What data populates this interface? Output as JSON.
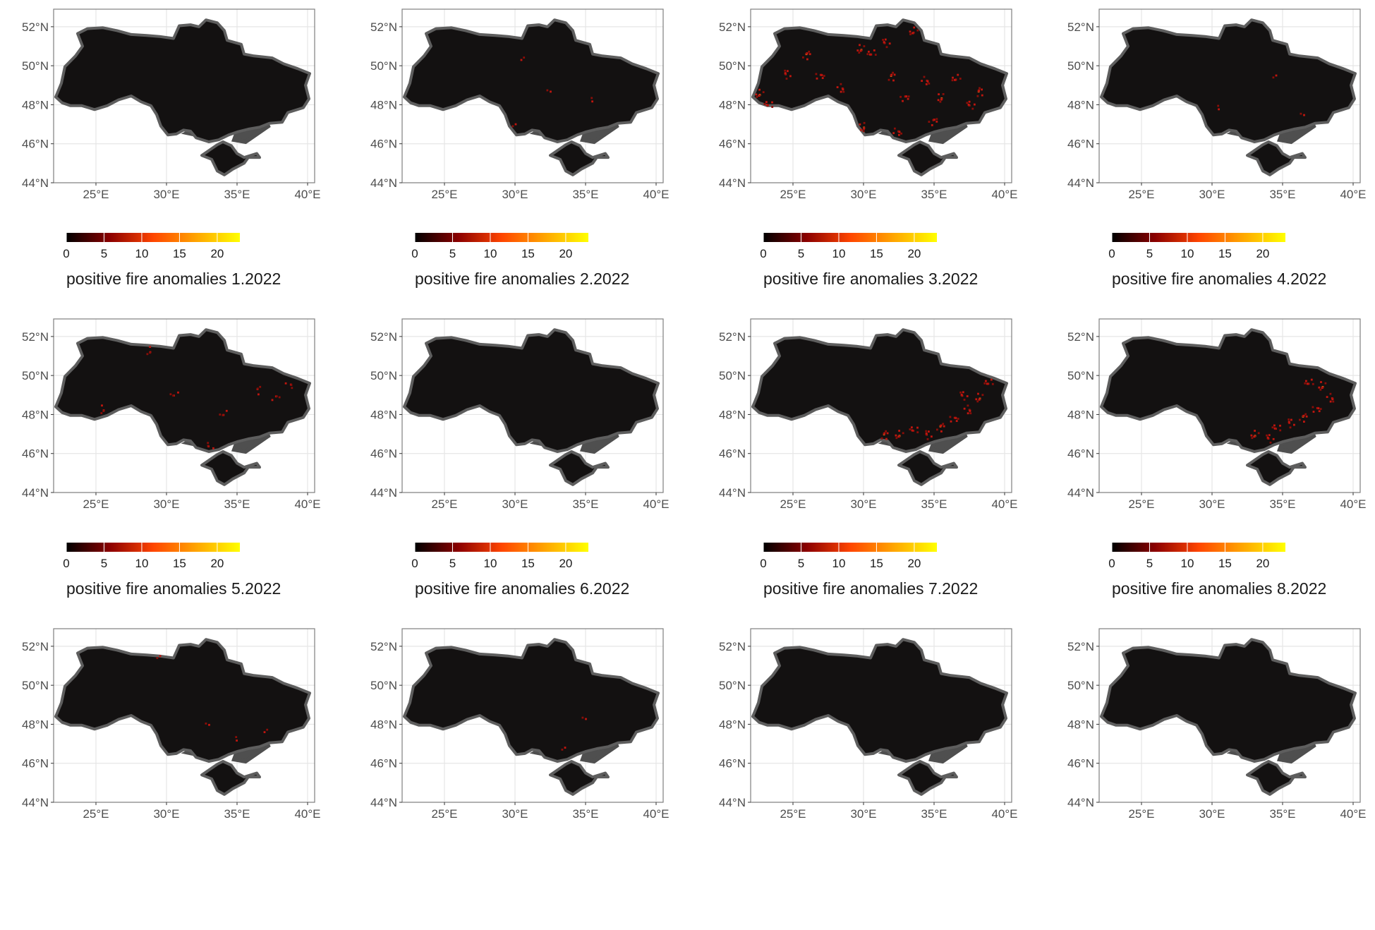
{
  "chart_data": {
    "type": "heatmap",
    "description_of_axes": "map panels with longitude (x) and latitude (y) graticules",
    "x_ticks": [
      "25°E",
      "30°E",
      "35°E",
      "40°E"
    ],
    "x_tick_values": [
      25,
      30,
      35,
      40
    ],
    "y_ticks": [
      "52°N",
      "50°N",
      "48°N",
      "46°N",
      "44°N"
    ],
    "y_tick_values": [
      52,
      50,
      48,
      46,
      44
    ],
    "xlim": [
      22,
      40.5
    ],
    "ylim": [
      44,
      52.9
    ],
    "grid": true,
    "legend": {
      "ticks": [
        "0",
        "5",
        "10",
        "15",
        "20"
      ],
      "tick_values": [
        0,
        5,
        10,
        15,
        20
      ],
      "range": [
        0,
        23
      ],
      "colors": [
        "#000000",
        "#8b0000",
        "#ff4500",
        "#ffa500",
        "#ffff00"
      ]
    },
    "panels": [
      {
        "title": "positive fire anomalies 1.2022",
        "month": 1,
        "year": 2022,
        "activity": "very low",
        "hotspots": []
      },
      {
        "title": "positive fire anomalies 2.2022",
        "month": 2,
        "year": 2022,
        "activity": "low",
        "hotspots": [
          {
            "lon": 30.0,
            "lat": 47.0
          },
          {
            "lon": 32.5,
            "lat": 48.7
          },
          {
            "lon": 35.5,
            "lat": 48.2
          },
          {
            "lon": 30.5,
            "lat": 50.3
          }
        ]
      },
      {
        "title": "positive fire anomalies 3.2022",
        "month": 3,
        "year": 2022,
        "activity": "high",
        "hotspots": [
          {
            "lon": 22.6,
            "lat": 48.5
          },
          {
            "lon": 23.2,
            "lat": 48.0
          },
          {
            "lon": 24.5,
            "lat": 49.6
          },
          {
            "lon": 26.0,
            "lat": 50.6
          },
          {
            "lon": 27.0,
            "lat": 49.5
          },
          {
            "lon": 28.5,
            "lat": 48.8
          },
          {
            "lon": 29.8,
            "lat": 50.8
          },
          {
            "lon": 30.5,
            "lat": 50.6
          },
          {
            "lon": 31.5,
            "lat": 51.2
          },
          {
            "lon": 32.0,
            "lat": 49.5
          },
          {
            "lon": 33.0,
            "lat": 48.4
          },
          {
            "lon": 34.5,
            "lat": 49.2
          },
          {
            "lon": 35.5,
            "lat": 48.3
          },
          {
            "lon": 36.5,
            "lat": 49.3
          },
          {
            "lon": 37.5,
            "lat": 48.0
          },
          {
            "lon": 38.2,
            "lat": 48.7
          },
          {
            "lon": 35.0,
            "lat": 47.2
          },
          {
            "lon": 32.5,
            "lat": 46.6
          },
          {
            "lon": 30.0,
            "lat": 46.8
          },
          {
            "lon": 33.5,
            "lat": 51.7
          }
        ]
      },
      {
        "title": "positive fire anomalies 4.2022",
        "month": 4,
        "year": 2022,
        "activity": "low",
        "hotspots": [
          {
            "lon": 34.5,
            "lat": 49.5
          },
          {
            "lon": 36.5,
            "lat": 47.5
          },
          {
            "lon": 30.5,
            "lat": 47.8
          }
        ]
      },
      {
        "title": "positive fire anomalies 5.2022",
        "month": 5,
        "year": 2022,
        "activity": "moderate",
        "hotspots": [
          {
            "lon": 28.8,
            "lat": 51.2
          },
          {
            "lon": 30.5,
            "lat": 49.0
          },
          {
            "lon": 33.0,
            "lat": 46.4
          },
          {
            "lon": 36.5,
            "lat": 49.3
          },
          {
            "lon": 37.8,
            "lat": 48.9
          },
          {
            "lon": 38.8,
            "lat": 49.5
          },
          {
            "lon": 25.5,
            "lat": 48.2
          },
          {
            "lon": 34.0,
            "lat": 48.0
          }
        ]
      },
      {
        "title": "positive fire anomalies 6.2022",
        "month": 6,
        "year": 2022,
        "activity": "very low",
        "hotspots": []
      },
      {
        "title": "positive fire anomalies 7.2022",
        "month": 7,
        "year": 2022,
        "activity": "high",
        "hotspots": [
          {
            "lon": 32.5,
            "lat": 46.9
          },
          {
            "lon": 33.5,
            "lat": 47.2
          },
          {
            "lon": 34.5,
            "lat": 47.0
          },
          {
            "lon": 35.5,
            "lat": 47.4
          },
          {
            "lon": 36.5,
            "lat": 47.8
          },
          {
            "lon": 37.5,
            "lat": 48.2
          },
          {
            "lon": 38.2,
            "lat": 48.8
          },
          {
            "lon": 38.8,
            "lat": 49.6
          },
          {
            "lon": 37.0,
            "lat": 49.0
          },
          {
            "lon": 31.5,
            "lat": 47.0
          }
        ]
      },
      {
        "title": "positive fire anomalies 8.2022",
        "month": 8,
        "year": 2022,
        "activity": "high",
        "hotspots": [
          {
            "lon": 33.0,
            "lat": 46.9
          },
          {
            "lon": 34.5,
            "lat": 47.3
          },
          {
            "lon": 35.5,
            "lat": 47.6
          },
          {
            "lon": 36.5,
            "lat": 47.9
          },
          {
            "lon": 37.5,
            "lat": 48.3
          },
          {
            "lon": 38.5,
            "lat": 48.8
          },
          {
            "lon": 37.8,
            "lat": 49.4
          },
          {
            "lon": 36.8,
            "lat": 49.6
          },
          {
            "lon": 34.0,
            "lat": 46.8
          }
        ]
      },
      {
        "title": "",
        "activity": "low",
        "hotspots": [
          {
            "lon": 29.5,
            "lat": 51.5
          },
          {
            "lon": 33.0,
            "lat": 48.0
          },
          {
            "lon": 35.0,
            "lat": 47.2
          },
          {
            "lon": 37.0,
            "lat": 47.6
          }
        ]
      },
      {
        "title": "",
        "activity": "low",
        "hotspots": [
          {
            "lon": 33.5,
            "lat": 46.8
          },
          {
            "lon": 35.0,
            "lat": 48.3
          }
        ]
      },
      {
        "title": "",
        "activity": "very low",
        "hotspots": []
      },
      {
        "title": "",
        "activity": "very low",
        "hotspots": []
      }
    ]
  },
  "colors": {
    "land": "#131111",
    "land_outline": "#5e5e5e",
    "water": "#4f4f4f",
    "grid": "#e6e6e6",
    "panel_border": "#7f7f7f"
  }
}
